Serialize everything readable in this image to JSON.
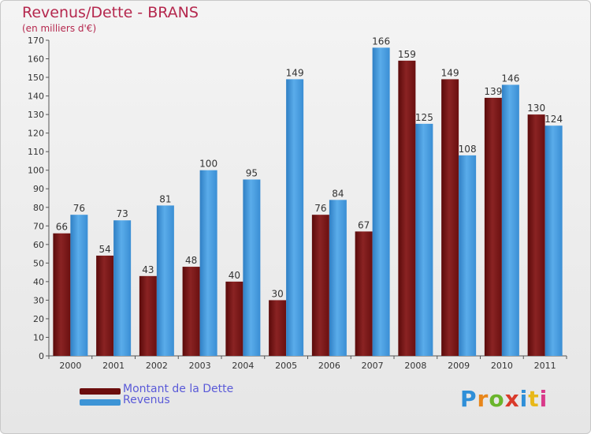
{
  "header": {
    "title": "Revenus/Dette - BRANS",
    "subtitle": "(en milliers d'€)"
  },
  "colors": {
    "dette": "#7a1a1a",
    "revenus": "#3d94d6",
    "title": "#b5284e",
    "legend_text": "#5a5ad8"
  },
  "legend": {
    "items": [
      {
        "label": "Montant de la Dette",
        "color": "#6b0d0d"
      },
      {
        "label": "Revenus",
        "color": "#3d94d6"
      }
    ]
  },
  "logo": {
    "letters": [
      "P",
      "r",
      "o",
      "x",
      "i",
      "t",
      "i"
    ],
    "colors": [
      "#2f8fd8",
      "#e8861a",
      "#6ab52c",
      "#d93a2a",
      "#2f8fd8",
      "#e8b81a",
      "#d93a8a"
    ]
  },
  "chart_data": {
    "type": "bar",
    "categories": [
      "2000",
      "2001",
      "2002",
      "2003",
      "2004",
      "2005",
      "2006",
      "2007",
      "2008",
      "2009",
      "2010",
      "2011"
    ],
    "series": [
      {
        "name": "Montant de la Dette",
        "values": [
          66,
          54,
          43,
          48,
          40,
          30,
          76,
          67,
          159,
          149,
          139,
          130
        ]
      },
      {
        "name": "Revenus",
        "values": [
          76,
          73,
          81,
          100,
          95,
          149,
          84,
          166,
          125,
          108,
          146,
          124
        ]
      }
    ],
    "title": "Revenus/Dette - BRANS",
    "ylabel": "(en milliers d'€)",
    "ylim": [
      0,
      170
    ],
    "yticks": [
      0,
      10,
      20,
      30,
      40,
      50,
      60,
      70,
      80,
      90,
      100,
      110,
      120,
      130,
      140,
      150,
      160,
      170
    ],
    "grid": false,
    "legend_position": "bottom-left",
    "data_labels": true
  }
}
